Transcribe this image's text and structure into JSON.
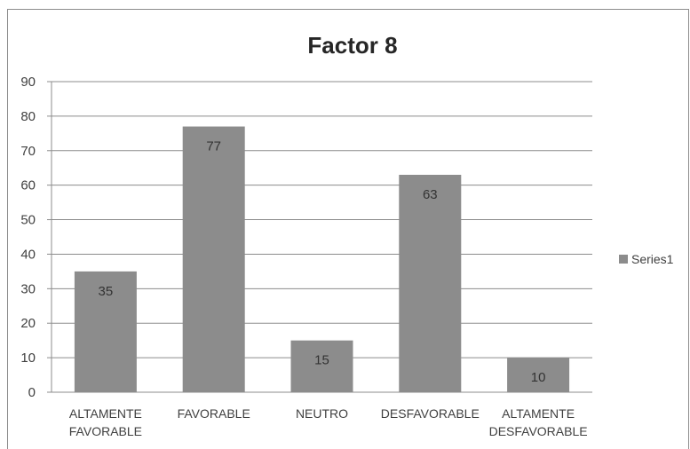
{
  "chart_data": {
    "type": "bar",
    "title": "Factor 8",
    "categories": [
      [
        "ALTAMENTE",
        "FAVORABLE"
      ],
      [
        "FAVORABLE"
      ],
      [
        "NEUTRO"
      ],
      [
        "DESFAVORABLE"
      ],
      [
        "ALTAMENTE",
        "DESFAVORABLE"
      ]
    ],
    "series": [
      {
        "name": "Series1",
        "values": [
          35,
          77,
          15,
          63,
          10
        ]
      }
    ],
    "yticks": [
      "0",
      "10",
      "20",
      "30",
      "40",
      "50",
      "60",
      "70",
      "80",
      "90"
    ],
    "ylim": [
      0,
      90
    ],
    "grid": true,
    "legend": "right",
    "bar_color": "#8c8c8c",
    "grid_color": "#8c8c8c"
  }
}
